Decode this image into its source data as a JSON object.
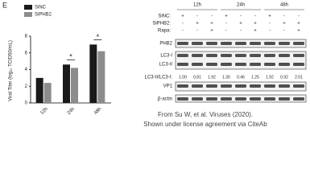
{
  "chart_data": {
    "type": "bar",
    "panel": "E",
    "ylabel": "Viral Titer (log₁₀ TCID50/mL)",
    "categories": [
      "12h",
      "24h",
      "48h"
    ],
    "series": [
      {
        "name": "SiNC",
        "color": "#1a1a1a",
        "values": [
          3.0,
          4.6,
          7.0
        ]
      },
      {
        "name": "SiPHB2",
        "color": "#8c8c8c",
        "values": [
          2.4,
          4.2,
          6.2
        ]
      }
    ],
    "ylim": [
      0,
      8
    ],
    "yticks": [
      0,
      2,
      4,
      6,
      8
    ],
    "annotations": [
      {
        "text": "*",
        "x": "24h"
      },
      {
        "text": "*",
        "x": "48h"
      }
    ]
  },
  "blot": {
    "times": [
      "12h",
      "24h",
      "48h"
    ],
    "treatments": [
      {
        "label": "SiNC:",
        "signs": [
          "+",
          "-",
          "-",
          "+",
          "-",
          "-",
          "+",
          "-",
          "-"
        ]
      },
      {
        "label": "SiPHB2:",
        "signs": [
          "-",
          "+",
          "+",
          "-",
          "+",
          "+",
          "-",
          "+",
          "+"
        ]
      },
      {
        "label": "Rapa:",
        "signs": [
          "-",
          "-",
          "+",
          "-",
          "-",
          "+",
          "-",
          "-",
          "+"
        ]
      }
    ],
    "bands": [
      "PHB2",
      "LC3-I",
      "LC3-II",
      "VP1",
      "β-actin"
    ],
    "ratio_label": "LC3-II/LC3-I:",
    "ratios": [
      "1.00",
      "0.81",
      "1.92",
      "1.30",
      "0.46",
      "1.25",
      "1.92",
      "0.92",
      "2.01"
    ]
  },
  "caption": [
    "From Su W, et al. Viruses (2020).",
    "Shown under license agreement via CiteAb"
  ]
}
